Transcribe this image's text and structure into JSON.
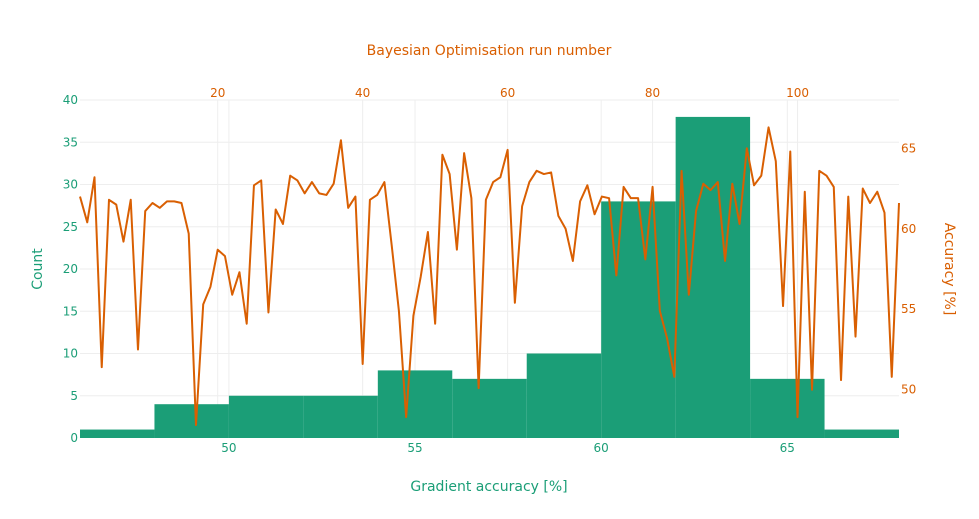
{
  "chart_data": {
    "type": "bar",
    "title": "Bayesian Optimisation run number",
    "xlabel": "Gradient accuracy [%]",
    "ylabel": "Count",
    "y2label": "Accuracy [%]",
    "xlim": [
      46,
      68
    ],
    "ylim": [
      0,
      40
    ],
    "x2lim": [
      1,
      114
    ],
    "y2lim": [
      47,
      68
    ],
    "x_ticks": [
      50,
      55,
      60,
      65
    ],
    "y_ticks": [
      0,
      5,
      10,
      15,
      20,
      25,
      30,
      35,
      40
    ],
    "x2_ticks": [
      20,
      40,
      60,
      80,
      100
    ],
    "y2_ticks": [
      50,
      55,
      60,
      65
    ],
    "grid": true,
    "histogram": {
      "name": "Count",
      "bins": [
        {
          "start": 46,
          "end": 48,
          "count": 1
        },
        {
          "start": 48,
          "end": 50,
          "count": 4
        },
        {
          "start": 50,
          "end": 52,
          "count": 5
        },
        {
          "start": 52,
          "end": 54,
          "count": 5
        },
        {
          "start": 54,
          "end": 56,
          "count": 8
        },
        {
          "start": 56,
          "end": 58,
          "count": 7
        },
        {
          "start": 58,
          "end": 60,
          "count": 10
        },
        {
          "start": 60,
          "end": 62,
          "count": 28
        },
        {
          "start": 62,
          "end": 64,
          "count": 38
        },
        {
          "start": 64,
          "end": 66,
          "count": 7
        },
        {
          "start": 66,
          "end": 68,
          "count": 1
        }
      ]
    },
    "series": [
      {
        "type": "line",
        "x": [
          1,
          2,
          3,
          4,
          5,
          6,
          7,
          8,
          9,
          10,
          11,
          12,
          13,
          14,
          15,
          16,
          17,
          18,
          19,
          20,
          21,
          22,
          23,
          24,
          25,
          26,
          27,
          28,
          29,
          30,
          31,
          32,
          33,
          34,
          35,
          36,
          37,
          38,
          39,
          40,
          41,
          42,
          43,
          44,
          45,
          46,
          47,
          48,
          49,
          50,
          51,
          52,
          53,
          54,
          55,
          56,
          57,
          58,
          59,
          60,
          61,
          62,
          63,
          64,
          65,
          66,
          67,
          68,
          69,
          70,
          71,
          72,
          73,
          74,
          75,
          76,
          77,
          78,
          79,
          80,
          81,
          82,
          83,
          84,
          85,
          86,
          87,
          88,
          89,
          90,
          91,
          92,
          93,
          94,
          95,
          96,
          97,
          98,
          99,
          100,
          101,
          102,
          103,
          104,
          105,
          106,
          107,
          108,
          109,
          110,
          111,
          112,
          113,
          114
        ],
        "y": [
          62.0,
          60.4,
          63.2,
          51.4,
          61.8,
          61.5,
          59.2,
          61.8,
          52.5,
          61.1,
          61.6,
          61.3,
          61.7,
          61.7,
          61.6,
          59.7,
          47.8,
          55.3,
          56.4,
          58.7,
          58.3,
          55.9,
          57.3,
          54.1,
          62.7,
          63.0,
          54.8,
          61.2,
          60.3,
          63.3,
          63.0,
          62.2,
          62.9,
          62.2,
          62.1,
          62.8,
          65.5,
          61.3,
          62.0,
          51.6,
          61.8,
          62.1,
          62.9,
          59.0,
          54.9,
          48.3,
          54.6,
          57.0,
          59.8,
          54.1,
          64.6,
          63.4,
          58.7,
          64.7,
          61.9,
          50.1,
          61.8,
          62.9,
          63.2,
          64.9,
          55.4,
          61.4,
          62.9,
          63.6,
          63.4,
          63.5,
          60.8,
          60.0,
          58.0,
          61.7,
          62.7,
          60.9,
          62.0,
          61.9,
          57.1,
          62.6,
          61.9,
          61.9,
          58.1,
          62.6,
          54.9,
          53.2,
          50.8,
          63.6,
          55.9,
          61.1,
          62.8,
          62.4,
          62.9,
          58.0,
          62.8,
          60.3,
          65.0,
          62.7,
          63.3,
          66.3,
          64.2,
          55.2,
          64.8,
          48.3,
          62.3,
          50.0,
          63.6,
          63.3,
          62.6,
          50.6,
          62.0,
          53.3,
          62.5,
          61.6,
          62.3,
          61.0,
          50.8,
          61.6
        ]
      }
    ],
    "colors": {
      "bars": "#1b9e77",
      "line": "#d95f02",
      "primary_axis": "#1b9e77",
      "secondary_axis": "#d95f02",
      "grid": "#eeeeee"
    }
  }
}
